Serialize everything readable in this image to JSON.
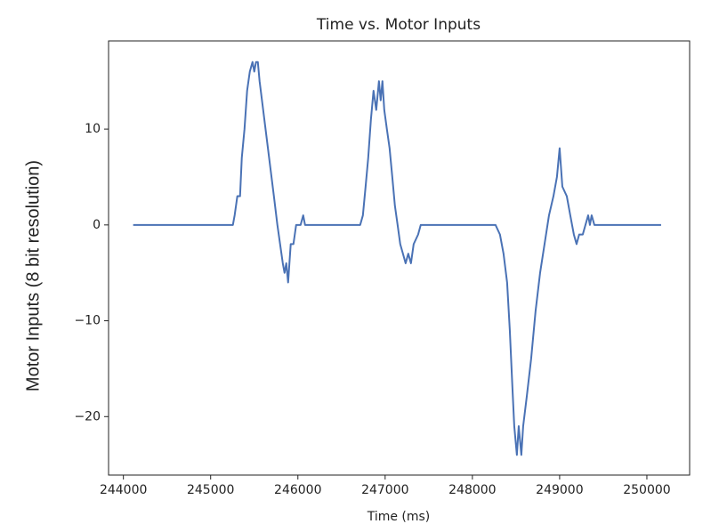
{
  "chart_data": {
    "type": "line",
    "title": "Time vs. Motor Inputs",
    "x_label": "Time (ms)",
    "y_label": "Motor Inputs (8 bit resolution)",
    "color": "#4a72b5",
    "x": [
      244112,
      245255,
      245275,
      245306,
      245337,
      245357,
      245388,
      245418,
      245449,
      245480,
      245500,
      245520,
      245541,
      245561,
      245602,
      245643,
      245684,
      245725,
      245765,
      245796,
      245827,
      245847,
      245867,
      245888,
      245918,
      245949,
      245980,
      246031,
      246061,
      246082,
      246714,
      246745,
      246776,
      246806,
      246837,
      246867,
      246898,
      246929,
      246949,
      246969,
      246990,
      247020,
      247051,
      247082,
      247112,
      247143,
      247173,
      247204,
      247235,
      247265,
      247296,
      247327,
      247378,
      247408,
      248265,
      248316,
      248357,
      248398,
      248429,
      248459,
      248480,
      248510,
      248531,
      248561,
      248582,
      248622,
      248673,
      248724,
      248776,
      248827,
      248878,
      248929,
      248969,
      249000,
      249031,
      249082,
      249122,
      249163,
      249194,
      249224,
      249265,
      249296,
      249327,
      249347,
      249367,
      249398,
      250163
    ],
    "values": [
      0,
      0,
      1,
      3,
      3,
      7,
      10,
      14,
      16,
      17,
      16,
      17,
      17,
      15,
      12,
      9,
      6,
      3,
      0,
      -2,
      -4,
      -5,
      -4,
      -6,
      -2,
      -2,
      0,
      0,
      1,
      0,
      0,
      1,
      4,
      7,
      11,
      14,
      12,
      15,
      13,
      15,
      12,
      10,
      8,
      5,
      2,
      0,
      -2,
      -3,
      -4,
      -3,
      -4,
      -2,
      -1,
      0,
      0,
      -1,
      -3,
      -6,
      -11,
      -17,
      -21,
      -24,
      -21,
      -24,
      -21,
      -18,
      -14,
      -9,
      -5,
      -2,
      1,
      3,
      5,
      8,
      4,
      3,
      1,
      -1,
      -2,
      -1,
      -1,
      0,
      1,
      0,
      1,
      0,
      0
    ],
    "xlim": [
      243830,
      250490
    ],
    "ylim": [
      -26.1,
      19.2
    ],
    "xticks": [
      244000,
      245000,
      246000,
      247000,
      248000,
      249000,
      250000
    ],
    "yticks": [
      {
        "value": -20,
        "label": "−20"
      },
      {
        "value": -10,
        "label": "−10"
      },
      0,
      10
    ]
  }
}
